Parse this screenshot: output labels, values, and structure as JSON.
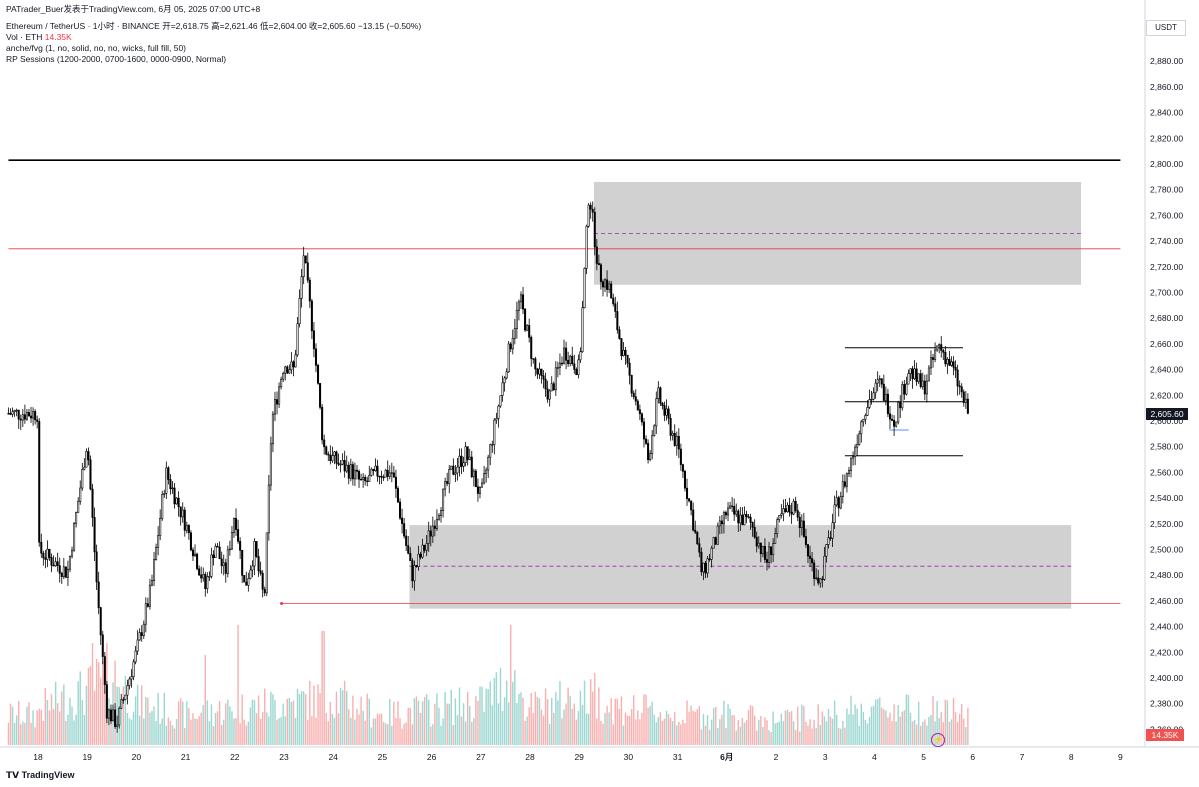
{
  "header": {
    "line1_prefix": "PATrader_Buer发表于TradingView.com,   6月 05, 2025 07:00 UTC+8",
    "line2": "Ethereum / TetherUS · 1小时 · BINANCE  开=2,618.75  高=2,621.46  低=2,604.00  收=2,605.60  −13.15 (−0.50%)",
    "vol_label": "Vol · ETH",
    "vol_value": "14.35K",
    "line4": "anche/fvg (1, no, solid, no, no, wicks, full fill, 50)",
    "line5": "RP Sessions (1200-2000, 0700-1600, 0000-0900, Normal)"
  },
  "currency": "USDT",
  "footer_logo": "TradingView",
  "lightning_icon": "lightning-icon",
  "colors": {
    "up": "#26a69a",
    "down": "#ef5350",
    "candle": "#000000",
    "zone": "#cccccc",
    "red_line": "#f23645",
    "dash": "#9c27b0",
    "last_price_bg": "#131722"
  },
  "chart_data": {
    "type": "candlestick",
    "ylim": [
      2350,
      2905
    ],
    "y_ticks": [
      2360,
      2380,
      2400,
      2420,
      2440,
      2460,
      2480,
      2500,
      2520,
      2540,
      2560,
      2580,
      2600,
      2620,
      2640,
      2660,
      2680,
      2700,
      2720,
      2740,
      2760,
      2780,
      2800,
      2820,
      2840,
      2860,
      2880
    ],
    "x_ticks": [
      "18",
      "19",
      "20",
      "21",
      "22",
      "23",
      "24",
      "25",
      "26",
      "27",
      "28",
      "29",
      "30",
      "31",
      "6月",
      "2",
      "3",
      "4",
      "5",
      "6",
      "7",
      "8",
      "9"
    ],
    "last_price": "2,605.60",
    "volume_last": "14.35K",
    "price_path": [
      [
        0,
        2500
      ],
      [
        0.6,
        2482
      ],
      [
        1.0,
        2585
      ],
      [
        1.2,
        2470
      ],
      [
        1.4,
        2375
      ],
      [
        1.6,
        2365
      ],
      [
        2.0,
        2420
      ],
      [
        2.3,
        2470
      ],
      [
        2.6,
        2560
      ],
      [
        3.0,
        2520
      ],
      [
        3.4,
        2470
      ],
      [
        3.6,
        2505
      ],
      [
        3.8,
        2480
      ],
      [
        4.0,
        2530
      ],
      [
        4.2,
        2470
      ],
      [
        4.4,
        2500
      ],
      [
        4.6,
        2460
      ],
      [
        4.75,
        2600
      ],
      [
        5.0,
        2645
      ],
      [
        5.2,
        2640
      ],
      [
        5.4,
        2730
      ],
      [
        5.6,
        2665
      ],
      [
        5.8,
        2580
      ],
      [
        6.0,
        2570
      ],
      [
        6.4,
        2560
      ],
      [
        6.6,
        2550
      ],
      [
        6.9,
        2560
      ],
      [
        7.2,
        2560
      ],
      [
        7.4,
        2520
      ],
      [
        7.6,
        2480
      ],
      [
        7.9,
        2505
      ],
      [
        8.4,
        2560
      ],
      [
        8.7,
        2575
      ],
      [
        9.0,
        2540
      ],
      [
        9.3,
        2600
      ],
      [
        9.6,
        2660
      ],
      [
        9.8,
        2695
      ],
      [
        10.1,
        2640
      ],
      [
        10.4,
        2620
      ],
      [
        10.7,
        2655
      ],
      [
        11.0,
        2640
      ],
      [
        11.2,
        2780
      ],
      [
        11.4,
        2715
      ],
      [
        11.6,
        2705
      ],
      [
        11.9,
        2650
      ],
      [
        12.2,
        2610
      ],
      [
        12.4,
        2570
      ],
      [
        12.6,
        2620
      ],
      [
        13.0,
        2580
      ],
      [
        13.3,
        2525
      ],
      [
        13.5,
        2480
      ],
      [
        14.0,
        2530
      ],
      [
        14.5,
        2520
      ],
      [
        14.8,
        2490
      ],
      [
        15.1,
        2525
      ],
      [
        15.4,
        2535
      ],
      [
        15.7,
        2490
      ],
      [
        15.9,
        2475
      ],
      [
        16.2,
        2530
      ],
      [
        16.5,
        2565
      ],
      [
        16.8,
        2610
      ],
      [
        17.1,
        2630
      ],
      [
        17.4,
        2600
      ],
      [
        17.7,
        2640
      ],
      [
        18.0,
        2625
      ],
      [
        18.3,
        2660
      ],
      [
        18.6,
        2640
      ],
      [
        18.9,
        2606
      ]
    ],
    "volume_profile": [
      [
        0,
        0.3
      ],
      [
        1,
        0.45
      ],
      [
        1.5,
        0.6
      ],
      [
        2,
        0.35
      ],
      [
        3,
        0.25
      ],
      [
        4,
        0.3
      ],
      [
        5,
        0.35
      ],
      [
        6,
        0.4
      ],
      [
        7,
        0.25
      ],
      [
        8,
        0.3
      ],
      [
        9,
        0.35
      ],
      [
        9.6,
        0.55
      ],
      [
        10,
        0.3
      ],
      [
        11,
        0.4
      ],
      [
        12,
        0.3
      ],
      [
        13,
        0.25
      ],
      [
        14,
        0.25
      ],
      [
        15,
        0.2
      ],
      [
        16,
        0.25
      ],
      [
        17,
        0.3
      ],
      [
        18,
        0.3
      ],
      [
        18.9,
        0.25
      ]
    ],
    "volume_spikes": [
      {
        "day": 1.1,
        "h": 0.85
      },
      {
        "day": 3.4,
        "h": 0.75
      },
      {
        "day": 4.05,
        "h": 1.0
      },
      {
        "day": 5.8,
        "h": 0.95
      },
      {
        "day": 9.6,
        "h": 1.0
      },
      {
        "day": 11.3,
        "h": 0.6
      },
      {
        "day": 18.95,
        "h": 0.45
      }
    ],
    "zones": [
      {
        "x0": 11.3,
        "x1": 21.2,
        "y_top": 2786,
        "y_bottom": 2706,
        "mid": 2746
      },
      {
        "x0": 7.55,
        "x1": 21.0,
        "y_top": 2519,
        "y_bottom": 2454,
        "mid": 2487
      }
    ],
    "hlines": [
      {
        "y": 2803,
        "x0": -0.6,
        "x1": 22.0,
        "color": "#000000",
        "width": 1.6
      },
      {
        "y": 2734,
        "x0": -0.6,
        "x1": 22.0,
        "color": "#f23645",
        "width": 0.8
      },
      {
        "y": 2458,
        "x0": 4.95,
        "x1": 22.0,
        "color": "#f23645",
        "width": 0.8,
        "dot": true
      },
      {
        "y": 2657,
        "x0": 16.4,
        "x1": 18.8,
        "color": "#000000",
        "width": 1.0
      },
      {
        "y": 2615,
        "x0": 16.4,
        "x1": 18.8,
        "color": "#000000",
        "width": 1.0
      },
      {
        "y": 2573,
        "x0": 16.4,
        "x1": 18.8,
        "color": "#000000",
        "width": 1.0
      },
      {
        "y": 2593,
        "x0": 17.3,
        "x1": 17.7,
        "color": "#2962ff",
        "width": 0.8
      }
    ]
  }
}
